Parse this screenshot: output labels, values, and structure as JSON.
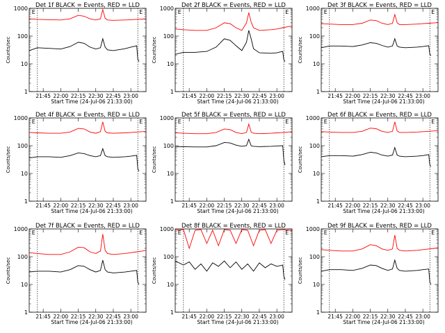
{
  "chart_data": {
    "type": "line",
    "yscale": "log",
    "ylim": [
      1,
      1000
    ],
    "xlim": [
      "21:33",
      "23:13"
    ],
    "y_ticks": [
      "1",
      "10",
      "100",
      "1000"
    ],
    "x_ticks": [
      "21:45",
      "22:00",
      "22:15",
      "22:30",
      "22:45",
      "23:00"
    ],
    "ylabel": "Counts/sec",
    "xlabel": "Start Time (24-Jul-06 21:33:00)",
    "markers": {
      "start_label": "E",
      "end_label": "E",
      "start_time": "21:40",
      "end_time": "23:06"
    },
    "colors": {
      "events": "#000000",
      "lld": "#ff0000"
    },
    "panels": [
      {
        "title": "Det 1f BLACK = Events, RED = LLD",
        "series": [
          {
            "key": "events",
            "x": [
              "21:33",
              "21:40",
              "21:50",
              "22:00",
              "22:08",
              "22:15",
              "22:20",
              "22:25",
              "22:30",
              "22:34",
              "22:36",
              "22:38",
              "22:40",
              "22:45",
              "22:55",
              "23:00",
              "23:05",
              "23:06",
              "23:07"
            ],
            "values": [
              30,
              38,
              36,
              34,
              42,
              60,
              55,
              40,
              34,
              38,
              80,
              40,
              32,
              30,
              35,
              40,
              45,
              15,
              12
            ]
          },
          {
            "key": "lld",
            "x": [
              "21:33",
              "21:40",
              "21:50",
              "22:00",
              "22:08",
              "22:15",
              "22:20",
              "22:25",
              "22:30",
              "22:34",
              "22:36",
              "22:38",
              "22:40",
              "22:45",
              "22:55",
              "23:00",
              "23:05",
              "23:10",
              "23:13"
            ],
            "values": [
              420,
              400,
              390,
              380,
              420,
              560,
              520,
              420,
              380,
              420,
              900,
              440,
              380,
              370,
              380,
              390,
              400,
              410,
              420
            ]
          }
        ]
      },
      {
        "title": "Det 2f BLACK = Events, RED = LLD",
        "series": [
          {
            "key": "events",
            "x": [
              "21:33",
              "21:40",
              "21:50",
              "22:00",
              "22:08",
              "22:15",
              "22:20",
              "22:25",
              "22:30",
              "22:34",
              "22:36",
              "22:38",
              "22:40",
              "22:45",
              "22:55",
              "23:00",
              "23:05",
              "23:06",
              "23:07"
            ],
            "values": [
              22,
              26,
              26,
              28,
              40,
              80,
              70,
              45,
              30,
              60,
              160,
              80,
              35,
              25,
              24,
              25,
              28,
              14,
              12
            ]
          },
          {
            "key": "lld",
            "x": [
              "21:33",
              "21:40",
              "21:50",
              "22:00",
              "22:08",
              "22:15",
              "22:20",
              "22:25",
              "22:30",
              "22:34",
              "22:36",
              "22:38",
              "22:40",
              "22:45",
              "22:55",
              "23:00",
              "23:05",
              "23:10",
              "23:13"
            ],
            "values": [
              180,
              170,
              160,
              160,
              200,
              300,
              280,
              200,
              160,
              300,
              700,
              320,
              200,
              160,
              170,
              180,
              200,
              220,
              230
            ]
          }
        ]
      },
      {
        "title": "Det 3f BLACK = Events, RED = LLD",
        "series": [
          {
            "key": "events",
            "x": [
              "21:33",
              "21:40",
              "21:50",
              "22:00",
              "22:08",
              "22:15",
              "22:20",
              "22:25",
              "22:30",
              "22:34",
              "22:36",
              "22:38",
              "22:40",
              "22:45",
              "22:55",
              "23:00",
              "23:05",
              "23:06",
              "23:07"
            ],
            "values": [
              38,
              44,
              44,
              42,
              48,
              58,
              55,
              46,
              40,
              44,
              80,
              44,
              40,
              38,
              40,
              42,
              45,
              22,
              20
            ]
          },
          {
            "key": "lld",
            "x": [
              "21:33",
              "21:40",
              "21:50",
              "22:00",
              "22:08",
              "22:15",
              "22:20",
              "22:25",
              "22:30",
              "22:34",
              "22:36",
              "22:38",
              "22:40",
              "22:45",
              "22:55",
              "23:00",
              "23:05",
              "23:10",
              "23:13"
            ],
            "values": [
              280,
              270,
              260,
              260,
              290,
              380,
              360,
              290,
              260,
              290,
              600,
              300,
              260,
              260,
              270,
              280,
              290,
              300,
              310
            ]
          }
        ]
      },
      {
        "title": "Det 4f BLACK = Events, RED = LLD",
        "series": [
          {
            "key": "events",
            "x": [
              "21:33",
              "21:40",
              "21:50",
              "22:00",
              "22:08",
              "22:15",
              "22:20",
              "22:25",
              "22:30",
              "22:34",
              "22:36",
              "22:38",
              "22:40",
              "22:45",
              "22:55",
              "23:00",
              "23:05",
              "23:06",
              "23:07"
            ],
            "values": [
              36,
              40,
              40,
              38,
              44,
              55,
              52,
              44,
              40,
              44,
              78,
              44,
              40,
              38,
              40,
              42,
              45,
              15,
              12
            ]
          },
          {
            "key": "lld",
            "x": [
              "21:33",
              "21:40",
              "21:50",
              "22:00",
              "22:08",
              "22:15",
              "22:20",
              "22:25",
              "22:30",
              "22:34",
              "22:36",
              "22:38",
              "22:40",
              "22:45",
              "22:55",
              "23:00",
              "23:05",
              "23:10",
              "23:13"
            ],
            "values": [
              300,
              290,
              280,
              280,
              310,
              420,
              400,
              310,
              280,
              320,
              720,
              330,
              290,
              280,
              290,
              300,
              310,
              320,
              330
            ]
          }
        ]
      },
      {
        "title": "Det 5f BLACK = Events, RED = LLD",
        "series": [
          {
            "key": "events",
            "x": [
              "21:33",
              "21:40",
              "21:50",
              "22:00",
              "22:08",
              "22:15",
              "22:20",
              "22:25",
              "22:30",
              "22:34",
              "22:36",
              "22:38",
              "22:40",
              "22:45",
              "22:55",
              "23:00",
              "23:05",
              "23:06",
              "23:07"
            ],
            "values": [
              90,
              92,
              90,
              90,
              100,
              130,
              125,
              105,
              95,
              100,
              170,
              100,
              95,
              92,
              95,
              98,
              100,
              30,
              20
            ]
          },
          {
            "key": "lld",
            "x": [
              "21:33",
              "21:40",
              "21:50",
              "22:00",
              "22:08",
              "22:15",
              "22:20",
              "22:25",
              "22:30",
              "22:34",
              "22:36",
              "22:38",
              "22:40",
              "22:45",
              "22:55",
              "23:00",
              "23:05",
              "23:10",
              "23:13"
            ],
            "values": [
              290,
              280,
              270,
              270,
              300,
              400,
              380,
              300,
              270,
              300,
              600,
              310,
              280,
              270,
              280,
              290,
              300,
              310,
              320
            ]
          }
        ]
      },
      {
        "title": "Det 6f BLACK = Events, RED = LLD",
        "series": [
          {
            "key": "events",
            "x": [
              "21:33",
              "21:40",
              "21:50",
              "22:00",
              "22:08",
              "22:15",
              "22:20",
              "22:25",
              "22:30",
              "22:34",
              "22:36",
              "22:38",
              "22:40",
              "22:45",
              "22:55",
              "23:00",
              "23:05",
              "23:06",
              "23:07"
            ],
            "values": [
              40,
              44,
              44,
              42,
              48,
              58,
              55,
              46,
              42,
              46,
              85,
              46,
              42,
              40,
              42,
              44,
              48,
              20,
              18
            ]
          },
          {
            "key": "lld",
            "x": [
              "21:33",
              "21:40",
              "21:50",
              "22:00",
              "22:08",
              "22:15",
              "22:20",
              "22:25",
              "22:30",
              "22:34",
              "22:36",
              "22:38",
              "22:40",
              "22:45",
              "22:55",
              "23:00",
              "23:05",
              "23:10",
              "23:13"
            ],
            "values": [
              320,
              310,
              300,
              300,
              330,
              430,
              410,
              330,
              300,
              330,
              720,
              340,
              300,
              300,
              310,
              320,
              330,
              340,
              350
            ]
          }
        ]
      },
      {
        "title": "Det 7f BLACK = Events, RED = LLD",
        "series": [
          {
            "key": "events",
            "x": [
              "21:33",
              "21:40",
              "21:50",
              "22:00",
              "22:08",
              "22:15",
              "22:20",
              "22:25",
              "22:30",
              "22:34",
              "22:36",
              "22:38",
              "22:40",
              "22:45",
              "22:55",
              "23:00",
              "23:05",
              "23:06",
              "23:07"
            ],
            "values": [
              28,
              30,
              30,
              28,
              34,
              48,
              45,
              34,
              28,
              32,
              75,
              34,
              28,
              26,
              28,
              30,
              32,
              12,
              10
            ]
          },
          {
            "key": "lld",
            "x": [
              "21:33",
              "21:40",
              "21:50",
              "22:00",
              "22:08",
              "22:15",
              "22:20",
              "22:25",
              "22:30",
              "22:34",
              "22:36",
              "22:38",
              "22:40",
              "22:45",
              "22:55",
              "23:00",
              "23:05",
              "23:10",
              "23:13"
            ],
            "values": [
              140,
              130,
              120,
              120,
              150,
              220,
              210,
              150,
              130,
              160,
              650,
              170,
              130,
              120,
              130,
              140,
              150,
              160,
              170
            ]
          }
        ]
      },
      {
        "title": "Det 8f BLACK = Events, RED = LLD",
        "series": [
          {
            "key": "events",
            "x": [
              "21:33",
              "21:40",
              "21:45",
              "21:50",
              "21:55",
              "22:00",
              "22:05",
              "22:10",
              "22:15",
              "22:20",
              "22:25",
              "22:30",
              "22:35",
              "22:40",
              "22:45",
              "22:50",
              "22:55",
              "23:00",
              "23:05",
              "23:06",
              "23:07"
            ],
            "values": [
              70,
              50,
              65,
              35,
              55,
              30,
              60,
              45,
              70,
              40,
              65,
              35,
              55,
              30,
              60,
              40,
              55,
              45,
              50,
              20,
              15
            ]
          },
          {
            "key": "lld",
            "x": [
              "21:33",
              "21:40",
              "21:45",
              "21:50",
              "21:55",
              "22:00",
              "22:05",
              "22:10",
              "22:15",
              "22:20",
              "22:25",
              "22:30",
              "22:35",
              "22:40",
              "22:45",
              "22:50",
              "22:55",
              "23:00",
              "23:05",
              "23:10",
              "23:13"
            ],
            "values": [
              900,
              950,
              200,
              900,
              950,
              300,
              900,
              250,
              950,
              900,
              300,
              950,
              900,
              250,
              900,
              950,
              300,
              900,
              950,
              900,
              850
            ]
          }
        ]
      },
      {
        "title": "Det 9f BLACK = Events, RED = LLD",
        "series": [
          {
            "key": "events",
            "x": [
              "21:33",
              "21:40",
              "21:50",
              "22:00",
              "22:08",
              "22:15",
              "22:20",
              "22:25",
              "22:30",
              "22:34",
              "22:36",
              "22:38",
              "22:40",
              "22:45",
              "22:55",
              "23:00",
              "23:05",
              "23:06",
              "23:07"
            ],
            "values": [
              30,
              34,
              34,
              32,
              38,
              50,
              48,
              38,
              32,
              36,
              75,
              38,
              32,
              30,
              32,
              34,
              36,
              12,
              10
            ]
          },
          {
            "key": "lld",
            "x": [
              "21:33",
              "21:40",
              "21:50",
              "22:00",
              "22:08",
              "22:15",
              "22:20",
              "22:25",
              "22:30",
              "22:34",
              "22:36",
              "22:38",
              "22:40",
              "22:45",
              "22:55",
              "23:00",
              "23:05",
              "23:10",
              "23:13"
            ],
            "values": [
              180,
              170,
              160,
              160,
              190,
              270,
              250,
              190,
              170,
              190,
              600,
              200,
              170,
              160,
              170,
              180,
              190,
              200,
              210
            ]
          }
        ]
      }
    ]
  }
}
